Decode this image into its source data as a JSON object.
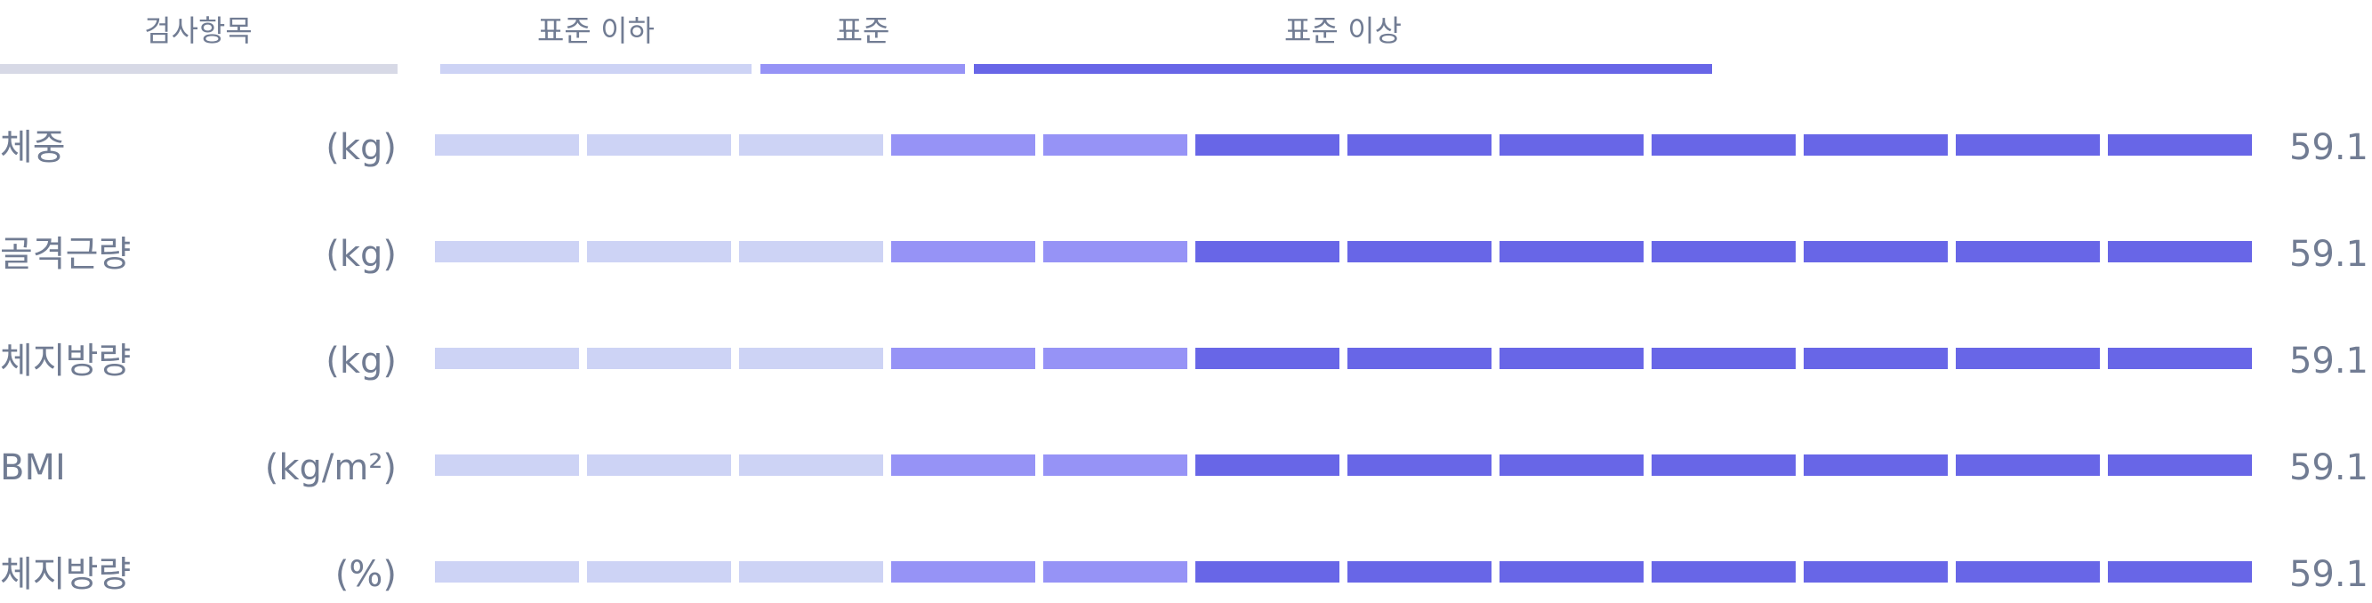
{
  "colors": {
    "below": "#cdd3f5",
    "standard": "#9693f6",
    "above": "#6866e7",
    "header_line": "#d7d9e6",
    "text": "#717c93"
  },
  "header": {
    "item_label": "검사항목",
    "below_label": "표준 이하",
    "standard_label": "표준",
    "above_label": "표준 이상"
  },
  "rows": [
    {
      "label": "체중",
      "unit": "(kg)",
      "value": "59.1",
      "segments": {
        "below": 3,
        "standard": 2,
        "above": 7
      }
    },
    {
      "label": "골격근량",
      "unit": "(kg)",
      "value": "59.1",
      "segments": {
        "below": 3,
        "standard": 2,
        "above": 7
      }
    },
    {
      "label": "체지방량",
      "unit": "(kg)",
      "value": "59.1",
      "segments": {
        "below": 3,
        "standard": 2,
        "above": 7
      }
    },
    {
      "label": "BMI",
      "unit": "(kg/m²)",
      "value": "59.1",
      "segments": {
        "below": 3,
        "standard": 2,
        "above": 7
      }
    },
    {
      "label": "체지방량",
      "unit": "(%)",
      "value": "59.1",
      "segments": {
        "below": 3,
        "standard": 2,
        "above": 7
      }
    }
  ]
}
